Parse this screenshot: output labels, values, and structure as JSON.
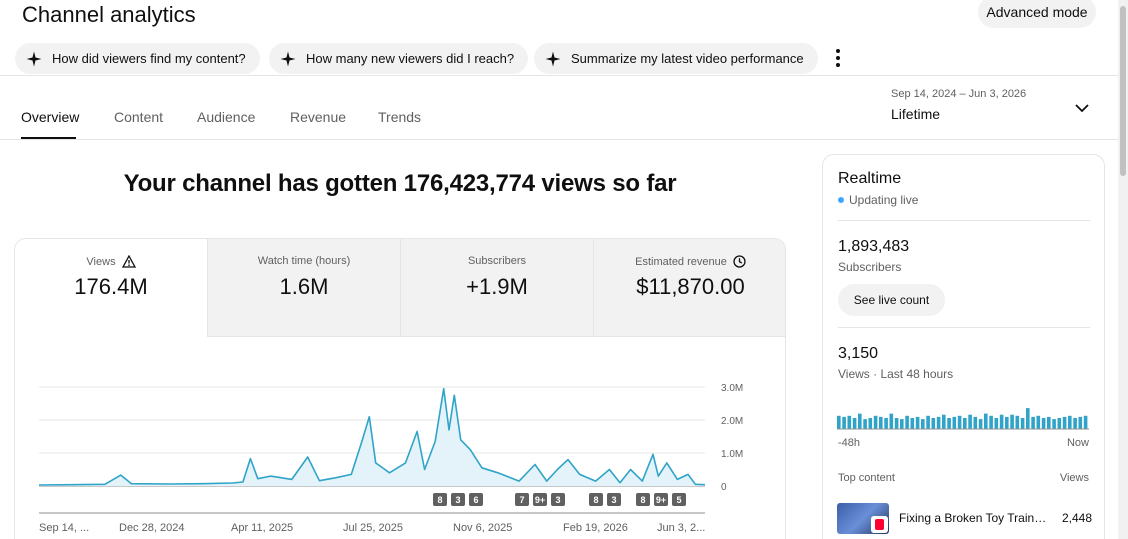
{
  "header": {
    "title": "Channel analytics",
    "advanced_mode": "Advanced mode"
  },
  "chips": [
    {
      "label": "How did viewers find my content?",
      "icon": "sparkle-icon"
    },
    {
      "label": "How many new viewers did I reach?",
      "icon": "sparkle-icon"
    },
    {
      "label": "Summarize my latest video performance",
      "icon": "sparkle-icon"
    }
  ],
  "tabs": [
    {
      "label": "Overview",
      "active": true
    },
    {
      "label": "Content",
      "active": false
    },
    {
      "label": "Audience",
      "active": false
    },
    {
      "label": "Revenue",
      "active": false
    },
    {
      "label": "Trends",
      "active": false
    }
  ],
  "date_range": {
    "dates": "Sep 14, 2024 – Jun 3, 2026",
    "label": "Lifetime"
  },
  "headline": "Your channel has gotten 176,423,774 views so far",
  "metrics": [
    {
      "label": "Views",
      "value": "176.4M",
      "icon": "warning-icon",
      "active": true
    },
    {
      "label": "Watch time (hours)",
      "value": "1.6M",
      "active": false
    },
    {
      "label": "Subscribers",
      "value": "+1.9M",
      "active": false
    },
    {
      "label": "Estimated revenue",
      "value": "$11,870.00",
      "icon": "clock-icon",
      "active": false
    }
  ],
  "chart_data": {
    "type": "area",
    "series": [
      {
        "name": "Views",
        "color": "#2fa4c8",
        "fill": "#e3f3f9"
      }
    ],
    "x_tick_labels": [
      "Sep 14, ...",
      "Dec 28, 2024",
      "Apr 11, 2025",
      "Jul 25, 2025",
      "Nov 6, 2025",
      "Feb 19, 2026",
      "Jun 3, 2..."
    ],
    "y_tick_labels": [
      "3.0M",
      "2.0M",
      "1.0M",
      "0"
    ],
    "ylim": [
      0,
      3000000
    ],
    "x_start": "2024-09-14",
    "x_end": "2026-06-03",
    "points": [
      [
        "2024-09-14",
        30000
      ],
      [
        "2024-10-15",
        40000
      ],
      [
        "2024-11-15",
        50000
      ],
      [
        "2024-11-30",
        330000
      ],
      [
        "2024-12-10",
        70000
      ],
      [
        "2025-01-15",
        60000
      ],
      [
        "2025-02-15",
        70000
      ],
      [
        "2025-03-15",
        90000
      ],
      [
        "2025-03-25",
        120000
      ],
      [
        "2025-04-01",
        830000
      ],
      [
        "2025-04-08",
        220000
      ],
      [
        "2025-04-20",
        300000
      ],
      [
        "2025-05-10",
        200000
      ],
      [
        "2025-05-25",
        880000
      ],
      [
        "2025-06-05",
        160000
      ],
      [
        "2025-06-20",
        250000
      ],
      [
        "2025-07-05",
        350000
      ],
      [
        "2025-07-15",
        1350000
      ],
      [
        "2025-07-22",
        2100000
      ],
      [
        "2025-07-28",
        700000
      ],
      [
        "2025-08-10",
        400000
      ],
      [
        "2025-08-25",
        700000
      ],
      [
        "2025-09-05",
        1650000
      ],
      [
        "2025-09-12",
        500000
      ],
      [
        "2025-09-22",
        1350000
      ],
      [
        "2025-09-30",
        2950000
      ],
      [
        "2025-10-05",
        1700000
      ],
      [
        "2025-10-10",
        2750000
      ],
      [
        "2025-10-16",
        1400000
      ],
      [
        "2025-10-25",
        1100000
      ],
      [
        "2025-11-05",
        550000
      ],
      [
        "2025-11-20",
        400000
      ],
      [
        "2025-12-10",
        150000
      ],
      [
        "2025-12-25",
        650000
      ],
      [
        "2026-01-05",
        150000
      ],
      [
        "2026-01-15",
        500000
      ],
      [
        "2026-01-25",
        800000
      ],
      [
        "2026-02-05",
        350000
      ],
      [
        "2026-02-20",
        150000
      ],
      [
        "2026-03-05",
        500000
      ],
      [
        "2026-03-15",
        100000
      ],
      [
        "2026-03-25",
        500000
      ],
      [
        "2026-04-05",
        150000
      ],
      [
        "2026-04-15",
        960000
      ],
      [
        "2026-04-20",
        300000
      ],
      [
        "2026-04-28",
        700000
      ],
      [
        "2026-05-08",
        200000
      ],
      [
        "2026-05-18",
        350000
      ],
      [
        "2026-05-25",
        50000
      ],
      [
        "2026-06-03",
        40000
      ]
    ],
    "annotation_groups": [
      [
        "8",
        "3",
        "6"
      ],
      [
        "7",
        "9+",
        "3"
      ],
      [
        "8",
        "3"
      ],
      [
        "8",
        "9+",
        "5"
      ]
    ],
    "grid": true
  },
  "realtime": {
    "title": "Realtime",
    "status": "Updating live",
    "subscribers_value": "1,893,483",
    "subscribers_label": "Subscribers",
    "live_count_button": "See live count",
    "views_value": "3,150",
    "views_label": "Views · Last 48 hours",
    "bar_levels": [
      0.6,
      0.55,
      0.6,
      0.5,
      0.7,
      0.45,
      0.5,
      0.6,
      0.55,
      0.5,
      0.7,
      0.5,
      0.45,
      0.6,
      0.5,
      0.55,
      0.45,
      0.6,
      0.5,
      0.55,
      0.65,
      0.5,
      0.55,
      0.6,
      0.5,
      0.65,
      0.55,
      0.45,
      0.7,
      0.6,
      0.5,
      0.65,
      0.55,
      0.65,
      0.6,
      0.5,
      0.95,
      0.55,
      0.6,
      0.5,
      0.55,
      0.45,
      0.5,
      0.55,
      0.6,
      0.5,
      0.55,
      0.6
    ],
    "axis_left": "-48h",
    "axis_right": "Now",
    "top_content_label": "Top content",
    "top_views_label": "Views",
    "top_items": [
      {
        "title": "Fixing a Broken Toy Train ...",
        "views": "2,448"
      }
    ]
  }
}
